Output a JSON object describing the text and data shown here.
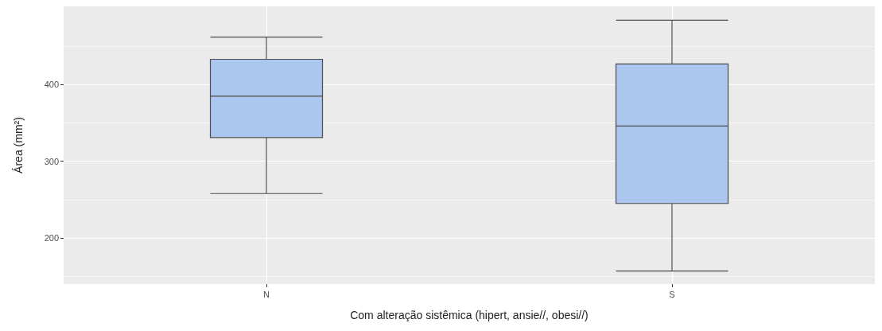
{
  "chart_data": {
    "type": "box",
    "xlabel": "Com alteração sistêmica (hipert, ansie//, obesi//)",
    "ylabel": "Área (mm²)",
    "categories": [
      "N",
      "S"
    ],
    "color": "#abc6ef",
    "ylim": [
      140,
      502
    ],
    "grid": true,
    "boxes": [
      {
        "low": 258,
        "q1": 331,
        "median": 385,
        "q3": 433,
        "high": 462
      },
      {
        "low": 157,
        "q1": 245,
        "median": 346,
        "q3": 427,
        "high": 484
      }
    ],
    "yticks": [
      {
        "value": 150,
        "label": null
      },
      200,
      {
        "value": 250,
        "label": null
      },
      300,
      {
        "value": 350,
        "label": null
      },
      400,
      {
        "value": 450,
        "label": null
      }
    ]
  }
}
